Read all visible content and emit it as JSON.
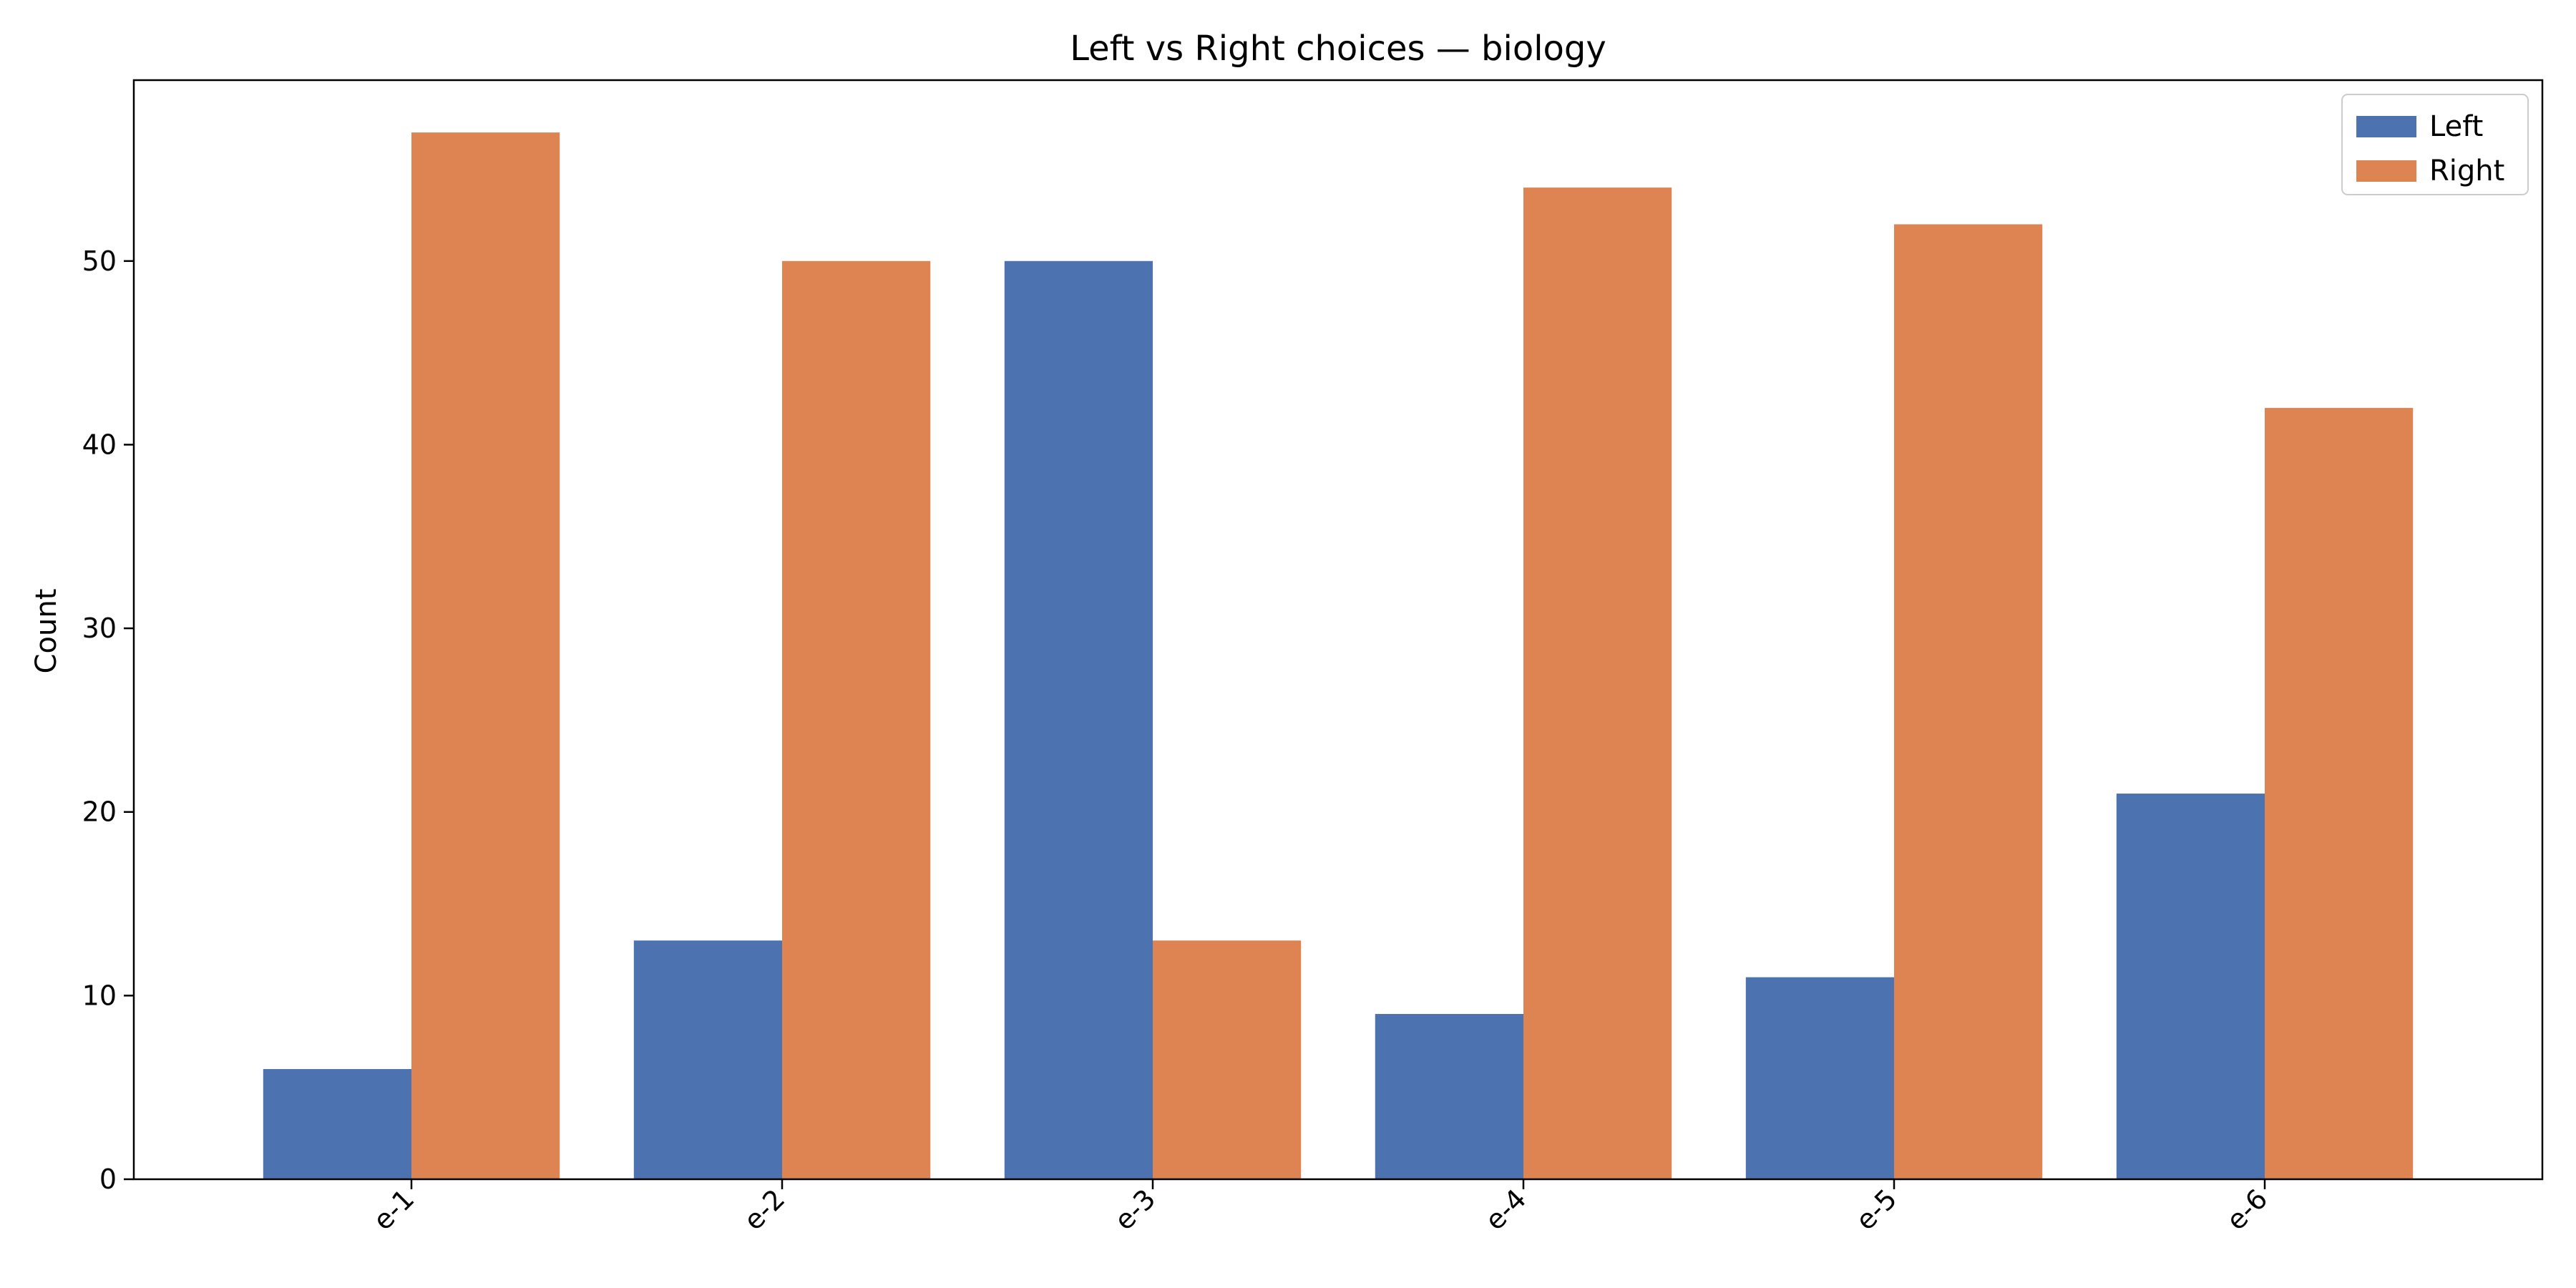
{
  "chart_data": {
    "type": "bar",
    "title": "Left vs Right choices — biology",
    "xlabel": "",
    "ylabel": "Count",
    "categories": [
      "e-1",
      "e-2",
      "e-3",
      "e-4",
      "e-5",
      "e-6"
    ],
    "series": [
      {
        "name": "Left",
        "color": "#4c72b0",
        "values": [
          6,
          13,
          50,
          9,
          11,
          21
        ]
      },
      {
        "name": "Right",
        "color": "#dd8452",
        "values": [
          57,
          50,
          13,
          54,
          52,
          42
        ]
      }
    ],
    "ylim": [
      0,
      59.85
    ],
    "yticks": [
      0,
      10,
      20,
      30,
      40,
      50
    ],
    "legend_position": "top-right",
    "grid": false
  }
}
